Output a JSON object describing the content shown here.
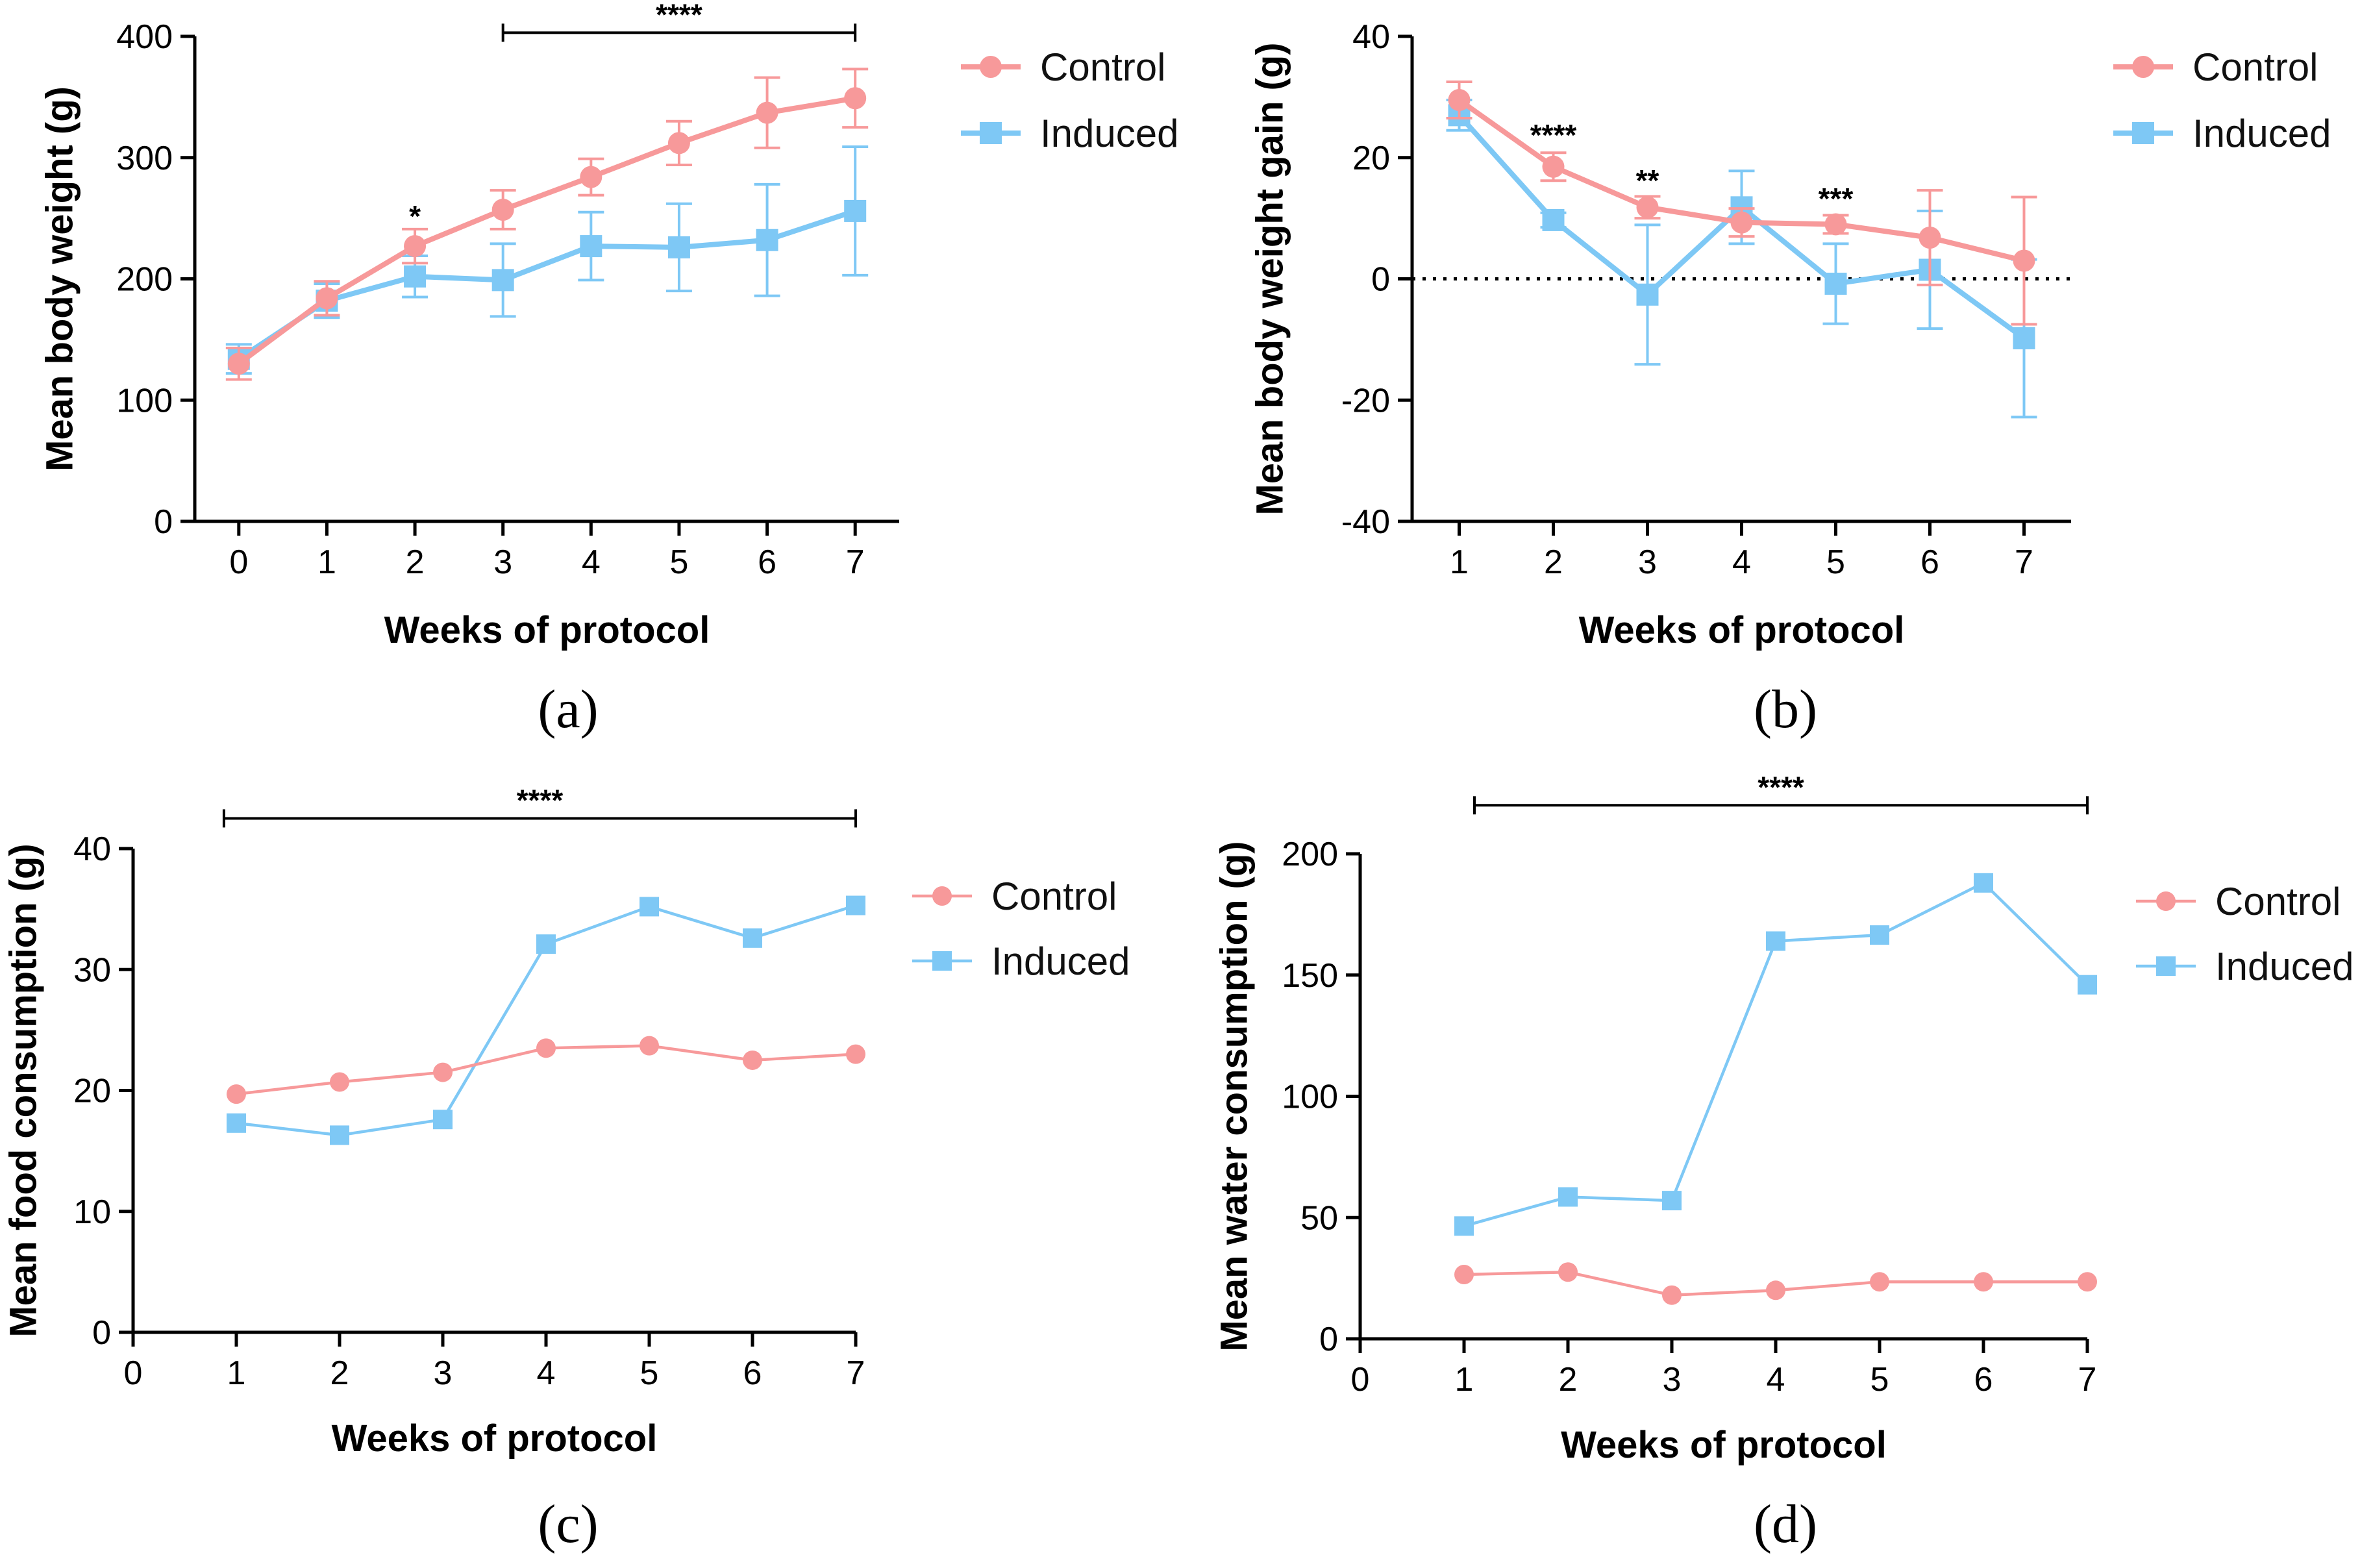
{
  "figure": {
    "colors": {
      "control": "#F7999A",
      "induced": "#7EC8F5",
      "axis": "#000000"
    },
    "series_names": [
      "Control",
      "Induced"
    ]
  },
  "chart_data": [
    {
      "panel": "a",
      "caption": "(a)",
      "type": "line",
      "xlabel": "Weeks of protocol",
      "ylabel": "Mean body weight (g)",
      "xlim": [
        -0.5,
        7.5
      ],
      "x_ticks": [
        0,
        1,
        2,
        3,
        4,
        5,
        6,
        7
      ],
      "x_tick_labels": [
        "0",
        "1",
        "2",
        "3",
        "4",
        "5",
        "6",
        "7"
      ],
      "ylim": [
        0,
        400
      ],
      "y_ticks": [
        0,
        100,
        200,
        300,
        400
      ],
      "y_tick_labels": [
        "0",
        "100",
        "200",
        "300",
        "400"
      ],
      "legend_position": "top-right",
      "series": [
        {
          "name": "Control",
          "x": [
            0,
            1,
            2,
            3,
            4,
            5,
            6,
            7
          ],
          "values": [
            130,
            184,
            227,
            257,
            284,
            312,
            337,
            349
          ],
          "error": [
            13,
            14,
            14,
            16,
            15,
            18,
            29,
            24
          ]
        },
        {
          "name": "Induced",
          "x": [
            0,
            1,
            2,
            3,
            4,
            5,
            6,
            7
          ],
          "values": [
            134,
            182,
            202,
            199,
            227,
            226,
            232,
            256
          ],
          "error": [
            12,
            14,
            17,
            30,
            28,
            36,
            46,
            53
          ]
        }
      ],
      "annotations": [
        {
          "type": "star",
          "x": 2,
          "y": 243,
          "text": "*"
        },
        {
          "type": "bracket",
          "x0": 3,
          "x1": 7,
          "y": 403,
          "text": "****"
        }
      ]
    },
    {
      "panel": "b",
      "caption": "(b)",
      "type": "line",
      "xlabel": "Weeks of protocol",
      "ylabel": "Mean body weight gain (g)",
      "xlim": [
        0.5,
        7.5
      ],
      "x_ticks": [
        1,
        2,
        3,
        4,
        5,
        6,
        7
      ],
      "x_tick_labels": [
        "1",
        "2",
        "3",
        "4",
        "5",
        "6",
        "7"
      ],
      "ylim": [
        -40,
        40
      ],
      "y_ticks": [
        -40,
        -20,
        0,
        20,
        40
      ],
      "y_tick_labels": [
        "-40",
        "-20",
        "0",
        "20",
        "40"
      ],
      "reference_line": 0,
      "legend_position": "top-right",
      "series": [
        {
          "name": "Control",
          "x": [
            1,
            2,
            3,
            4,
            5,
            6,
            7
          ],
          "values": [
            29.5,
            18.5,
            11.8,
            9.3,
            9.0,
            6.8,
            3.0
          ],
          "error": [
            3.0,
            2.3,
            1.8,
            2.3,
            1.5,
            7.8,
            10.5
          ]
        },
        {
          "name": "Induced",
          "x": [
            1,
            2,
            3,
            4,
            5,
            6,
            7
          ],
          "values": [
            27.0,
            9.7,
            -2.6,
            11.8,
            -0.8,
            1.5,
            -9.8
          ],
          "error": [
            2.5,
            1.2,
            11.5,
            6.0,
            6.6,
            9.7,
            13.0
          ]
        }
      ],
      "annotations": [
        {
          "type": "star",
          "x": 2,
          "y": 22,
          "text": "****"
        },
        {
          "type": "star",
          "x": 3,
          "y": 14.5,
          "text": "**"
        },
        {
          "type": "star",
          "x": 5,
          "y": 11.5,
          "text": "***"
        }
      ]
    },
    {
      "panel": "c",
      "caption": "(c)",
      "type": "line",
      "xlabel": "Weeks of protocol",
      "ylabel": "Mean food consumption (g)",
      "xlim": [
        0,
        7
      ],
      "x_ticks": [
        0,
        1,
        2,
        3,
        4,
        5,
        6,
        7
      ],
      "x_tick_labels": [
        "0",
        "1",
        "2",
        "3",
        "4",
        "5",
        "6",
        "7"
      ],
      "ylim": [
        0,
        40
      ],
      "y_ticks": [
        0,
        10,
        20,
        30,
        40
      ],
      "y_tick_labels": [
        "0",
        "10",
        "20",
        "30",
        "40"
      ],
      "legend_position": "right",
      "series": [
        {
          "name": "Control",
          "x": [
            1,
            2,
            3,
            4,
            5,
            6,
            7
          ],
          "values": [
            19.7,
            20.7,
            21.5,
            23.5,
            23.7,
            22.5,
            23.0
          ]
        },
        {
          "name": "Induced",
          "x": [
            1,
            2,
            3,
            4,
            5,
            6,
            7
          ],
          "values": [
            17.3,
            16.3,
            17.6,
            32.1,
            35.2,
            32.6,
            35.3
          ]
        }
      ],
      "annotations": [
        {
          "type": "bracket",
          "x0": 0.88,
          "x1": 7,
          "y": 42.5,
          "text": "****"
        }
      ]
    },
    {
      "panel": "d",
      "caption": "(d)",
      "type": "line",
      "xlabel": "Weeks of protocol",
      "ylabel": "Mean water consumption (g)",
      "xlim": [
        0,
        7
      ],
      "x_ticks": [
        0,
        1,
        2,
        3,
        4,
        5,
        6,
        7
      ],
      "x_tick_labels": [
        "0",
        "1",
        "2",
        "3",
        "4",
        "5",
        "6",
        "7"
      ],
      "ylim": [
        0,
        200
      ],
      "y_ticks": [
        0,
        50,
        100,
        150,
        200
      ],
      "y_tick_labels": [
        "0",
        "50",
        "100",
        "150",
        "200"
      ],
      "legend_position": "right",
      "series": [
        {
          "name": "Control",
          "x": [
            1,
            2,
            3,
            4,
            5,
            6,
            7
          ],
          "values": [
            26.5,
            27.5,
            18,
            20,
            23.5,
            23.5,
            23.5
          ]
        },
        {
          "name": "Induced",
          "x": [
            1,
            2,
            3,
            4,
            5,
            6,
            7
          ],
          "values": [
            46.5,
            58.5,
            57,
            164,
            166.5,
            188,
            146
          ]
        }
      ],
      "annotations": [
        {
          "type": "bracket",
          "x0": 1.1,
          "x1": 7,
          "y": 220,
          "text": "****"
        }
      ]
    }
  ]
}
